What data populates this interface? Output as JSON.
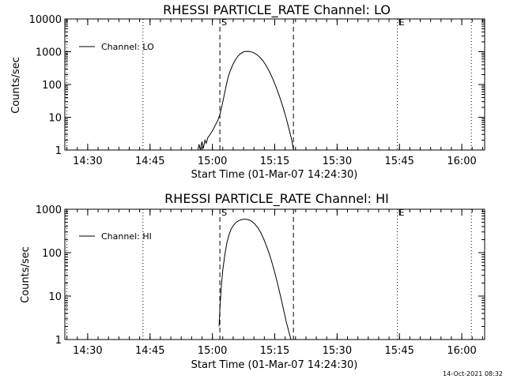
{
  "chart_data": [
    {
      "type": "line",
      "title": "RHESSI PARTICLE_RATE Channel: LO",
      "xlabel": "Start Time (01-Mar-07 14:24:30)",
      "ylabel": "Counts/sec",
      "yscale": "log",
      "ylim": [
        1,
        10000
      ],
      "xlim_minutes": [
        0,
        101
      ],
      "yticks": [
        {
          "value": 1,
          "label": "1"
        },
        {
          "value": 10,
          "label": "10"
        },
        {
          "value": 100,
          "label": "100"
        },
        {
          "value": 1000,
          "label": "1000"
        },
        {
          "value": 10000,
          "label": "10000"
        }
      ],
      "xticks": [
        {
          "minute": 5.5,
          "label": "14:30"
        },
        {
          "minute": 20.5,
          "label": "14:45"
        },
        {
          "minute": 35.5,
          "label": "15:00"
        },
        {
          "minute": 50.5,
          "label": "15:15"
        },
        {
          "minute": 65.5,
          "label": "15:30"
        },
        {
          "minute": 80.5,
          "label": "15:45"
        },
        {
          "minute": 95.5,
          "label": "16:00"
        }
      ],
      "vlines": [
        {
          "minute": 0.5,
          "style": "dotted",
          "label": ""
        },
        {
          "minute": 18.8,
          "style": "dotted",
          "label": ""
        },
        {
          "minute": 37.3,
          "style": "dashed",
          "label": "S"
        },
        {
          "minute": 55.0,
          "style": "dashed",
          "label": ""
        },
        {
          "minute": 80.0,
          "style": "dotted",
          "label": "E"
        },
        {
          "minute": 97.8,
          "style": "dotted",
          "label": ""
        }
      ],
      "legend": {
        "position": "top-left",
        "entries": [
          "Channel: LO"
        ]
      },
      "series": [
        {
          "name": "Channel: LO",
          "x": [
            32.0,
            32.3,
            32.6,
            33.0,
            33.3,
            33.7,
            34.0,
            34.4,
            34.8,
            35.3,
            35.8,
            36.3,
            36.8,
            37.3,
            37.8,
            38.3,
            38.8,
            39.3,
            39.8,
            40.4,
            41.0,
            41.6,
            42.2,
            42.9,
            43.6,
            44.4,
            45.2,
            46.0,
            46.8,
            47.6,
            48.4,
            49.2,
            50.0,
            50.8,
            51.6,
            52.4,
            53.2,
            53.9,
            54.6,
            55.0
          ],
          "y": [
            1.0,
            1.5,
            1.0,
            1.8,
            1.1,
            2.0,
            1.6,
            2.4,
            2.8,
            3.5,
            4.5,
            6.0,
            8.0,
            12,
            22,
            45,
            90,
            170,
            260,
            400,
            560,
            720,
            860,
            980,
            1030,
            1020,
            960,
            850,
            700,
            540,
            380,
            250,
            150,
            85,
            45,
            22,
            10,
            4.5,
            2.0,
            1.0
          ]
        }
      ]
    },
    {
      "type": "line",
      "title": "RHESSI PARTICLE_RATE Channel: HI",
      "xlabel": "Start Time (01-Mar-07 14:24:30)",
      "ylabel": "Counts/sec",
      "yscale": "log",
      "ylim": [
        1,
        1000
      ],
      "xlim_minutes": [
        0,
        101
      ],
      "yticks": [
        {
          "value": 1,
          "label": "1"
        },
        {
          "value": 10,
          "label": "10"
        },
        {
          "value": 100,
          "label": "100"
        },
        {
          "value": 1000,
          "label": "1000"
        }
      ],
      "xticks": [
        {
          "minute": 5.5,
          "label": "14:30"
        },
        {
          "minute": 20.5,
          "label": "14:45"
        },
        {
          "minute": 35.5,
          "label": "15:00"
        },
        {
          "minute": 50.5,
          "label": "15:15"
        },
        {
          "minute": 65.5,
          "label": "15:30"
        },
        {
          "minute": 80.5,
          "label": "15:45"
        },
        {
          "minute": 95.5,
          "label": "16:00"
        }
      ],
      "vlines": [
        {
          "minute": 0.5,
          "style": "dotted",
          "label": ""
        },
        {
          "minute": 18.8,
          "style": "dotted",
          "label": ""
        },
        {
          "minute": 37.3,
          "style": "dashed",
          "label": "S"
        },
        {
          "minute": 55.0,
          "style": "dashed",
          "label": ""
        },
        {
          "minute": 80.0,
          "style": "dotted",
          "label": "E"
        },
        {
          "minute": 97.8,
          "style": "dotted",
          "label": ""
        }
      ],
      "legend": {
        "position": "top-left",
        "entries": [
          "Channel: HI"
        ]
      },
      "series": [
        {
          "name": "Channel: HI",
          "x": [
            37.1,
            37.3,
            37.6,
            38.0,
            38.5,
            39.0,
            39.5,
            40.0,
            40.6,
            41.2,
            41.9,
            42.6,
            43.3,
            44.0,
            44.8,
            45.6,
            46.4,
            47.2,
            48.0,
            48.8,
            49.6,
            50.4,
            51.2,
            52.0,
            52.7,
            53.3,
            53.9,
            54.4
          ],
          "y": [
            2.0,
            5.0,
            15,
            40,
            90,
            170,
            260,
            350,
            430,
            500,
            550,
            580,
            590,
            580,
            540,
            470,
            380,
            280,
            190,
            120,
            70,
            38,
            19,
            9,
            4.5,
            2.5,
            1.5,
            1.0
          ]
        }
      ]
    }
  ],
  "timestamp": "14-Oct-2021 08:32"
}
